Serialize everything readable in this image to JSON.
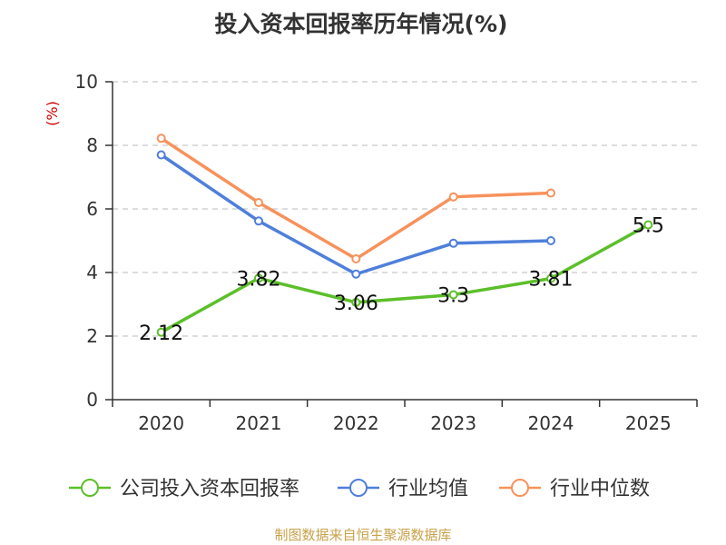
{
  "chart_data": {
    "type": "line",
    "title": "投入资本回报率历年情况(%)",
    "ylabel": "(%)",
    "xlabel": "",
    "categories": [
      "2020",
      "2021",
      "2022",
      "2023",
      "2024",
      "2025"
    ],
    "ylim": [
      0,
      10
    ],
    "yticks": [
      0,
      2,
      4,
      6,
      8,
      10
    ],
    "grid": true,
    "legend_position": "bottom",
    "series": [
      {
        "name": "公司投入资本回报率",
        "color": "#5cbf2a",
        "values": [
          2.12,
          3.82,
          3.06,
          3.3,
          3.81,
          5.5
        ],
        "labels": [
          "2.12",
          "3.82",
          "3.06",
          "3.3",
          "3.81",
          "5.5"
        ]
      },
      {
        "name": "行业均值",
        "color": "#4f7fdb",
        "values": [
          7.7,
          5.62,
          3.95,
          4.92,
          5.0,
          null
        ]
      },
      {
        "name": "行业中位数",
        "color": "#f7925c",
        "values": [
          8.22,
          6.2,
          4.43,
          6.38,
          6.5,
          null
        ]
      }
    ]
  },
  "source_text": "制图数据来自恒生聚源数据库"
}
